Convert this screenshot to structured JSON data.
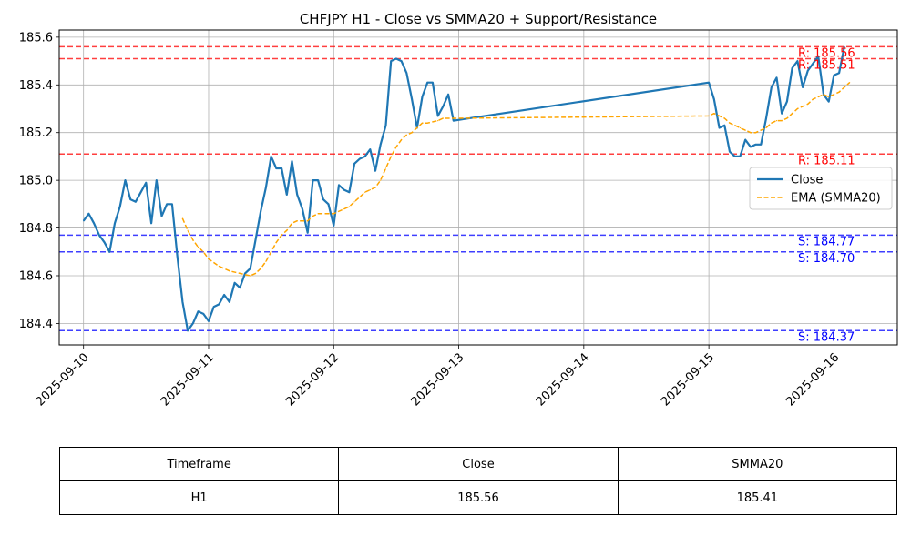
{
  "chart_data": {
    "type": "line",
    "title": "CHFJPY H1 - Close vs SMMA20 + Support/Resistance",
    "xlabel": "",
    "ylabel": "",
    "x_range": [
      "2025-09-09T19:20",
      "2025-09-16T12:10"
    ],
    "ylim": [
      184.31,
      185.63
    ],
    "grid": true,
    "legend_position": "center-right",
    "x_ticks": [
      "2025-09-10",
      "2025-09-11",
      "2025-09-12",
      "2025-09-13",
      "2025-09-14",
      "2025-09-15",
      "2025-09-16"
    ],
    "y_ticks": [
      "184.4",
      "184.6",
      "184.8",
      "185.0",
      "185.2",
      "185.4",
      "185.6"
    ],
    "colors": {
      "close": "#1f77b4",
      "smma": "#ffa500",
      "resistance": "#ff0000",
      "support": "#0000ff",
      "grid": "#b0b0b0"
    },
    "series": [
      {
        "name": "Close",
        "style": "solid",
        "points": [
          [
            "2025-09-10T00:00",
            184.83
          ],
          [
            "2025-09-10T01:00",
            184.86
          ],
          [
            "2025-09-10T02:00",
            184.82
          ],
          [
            "2025-09-10T03:00",
            184.77
          ],
          [
            "2025-09-10T04:00",
            184.74
          ],
          [
            "2025-09-10T05:00",
            184.7
          ],
          [
            "2025-09-10T06:00",
            184.82
          ],
          [
            "2025-09-10T07:00",
            184.89
          ],
          [
            "2025-09-10T08:00",
            185.0
          ],
          [
            "2025-09-10T09:00",
            184.92
          ],
          [
            "2025-09-10T10:00",
            184.91
          ],
          [
            "2025-09-10T11:00",
            184.95
          ],
          [
            "2025-09-10T12:00",
            184.99
          ],
          [
            "2025-09-10T13:00",
            184.82
          ],
          [
            "2025-09-10T14:00",
            185.0
          ],
          [
            "2025-09-10T15:00",
            184.85
          ],
          [
            "2025-09-10T16:00",
            184.9
          ],
          [
            "2025-09-10T17:00",
            184.9
          ],
          [
            "2025-09-10T18:00",
            184.68
          ],
          [
            "2025-09-10T19:00",
            184.49
          ],
          [
            "2025-09-10T20:00",
            184.37
          ],
          [
            "2025-09-10T21:00",
            184.4
          ],
          [
            "2025-09-10T22:00",
            184.45
          ],
          [
            "2025-09-10T23:00",
            184.44
          ],
          [
            "2025-09-11T00:00",
            184.41
          ],
          [
            "2025-09-11T01:00",
            184.47
          ],
          [
            "2025-09-11T02:00",
            184.48
          ],
          [
            "2025-09-11T03:00",
            184.52
          ],
          [
            "2025-09-11T04:00",
            184.49
          ],
          [
            "2025-09-11T05:00",
            184.57
          ],
          [
            "2025-09-11T06:00",
            184.55
          ],
          [
            "2025-09-11T07:00",
            184.61
          ],
          [
            "2025-09-11T08:00",
            184.63
          ],
          [
            "2025-09-11T09:00",
            184.75
          ],
          [
            "2025-09-11T10:00",
            184.87
          ],
          [
            "2025-09-11T11:00",
            184.97
          ],
          [
            "2025-09-11T12:00",
            185.1
          ],
          [
            "2025-09-11T13:00",
            185.05
          ],
          [
            "2025-09-11T14:00",
            185.05
          ],
          [
            "2025-09-11T15:00",
            184.94
          ],
          [
            "2025-09-11T16:00",
            185.08
          ],
          [
            "2025-09-11T17:00",
            184.94
          ],
          [
            "2025-09-11T18:00",
            184.88
          ],
          [
            "2025-09-11T19:00",
            184.78
          ],
          [
            "2025-09-11T20:00",
            185.0
          ],
          [
            "2025-09-11T21:00",
            185.0
          ],
          [
            "2025-09-11T22:00",
            184.92
          ],
          [
            "2025-09-11T23:00",
            184.9
          ],
          [
            "2025-09-12T00:00",
            184.81
          ],
          [
            "2025-09-12T01:00",
            184.98
          ],
          [
            "2025-09-12T02:00",
            184.96
          ],
          [
            "2025-09-12T03:00",
            184.95
          ],
          [
            "2025-09-12T04:00",
            185.07
          ],
          [
            "2025-09-12T05:00",
            185.09
          ],
          [
            "2025-09-12T06:00",
            185.1
          ],
          [
            "2025-09-12T07:00",
            185.13
          ],
          [
            "2025-09-12T08:00",
            185.04
          ],
          [
            "2025-09-12T09:00",
            185.15
          ],
          [
            "2025-09-12T10:00",
            185.23
          ],
          [
            "2025-09-12T11:00",
            185.5
          ],
          [
            "2025-09-12T12:00",
            185.51
          ],
          [
            "2025-09-12T13:00",
            185.5
          ],
          [
            "2025-09-12T14:00",
            185.45
          ],
          [
            "2025-09-12T15:00",
            185.34
          ],
          [
            "2025-09-12T16:00",
            185.22
          ],
          [
            "2025-09-12T17:00",
            185.35
          ],
          [
            "2025-09-12T18:00",
            185.41
          ],
          [
            "2025-09-12T19:00",
            185.41
          ],
          [
            "2025-09-12T20:00",
            185.27
          ],
          [
            "2025-09-12T21:00",
            185.31
          ],
          [
            "2025-09-12T22:00",
            185.36
          ],
          [
            "2025-09-12T23:00",
            185.25
          ],
          [
            "2025-09-15T00:00",
            185.41
          ],
          [
            "2025-09-15T01:00",
            185.34
          ],
          [
            "2025-09-15T02:00",
            185.22
          ],
          [
            "2025-09-15T03:00",
            185.23
          ],
          [
            "2025-09-15T04:00",
            185.12
          ],
          [
            "2025-09-15T05:00",
            185.1
          ],
          [
            "2025-09-15T06:00",
            185.1
          ],
          [
            "2025-09-15T07:00",
            185.17
          ],
          [
            "2025-09-15T08:00",
            185.14
          ],
          [
            "2025-09-15T09:00",
            185.15
          ],
          [
            "2025-09-15T10:00",
            185.15
          ],
          [
            "2025-09-15T11:00",
            185.26
          ],
          [
            "2025-09-15T12:00",
            185.39
          ],
          [
            "2025-09-15T13:00",
            185.43
          ],
          [
            "2025-09-15T14:00",
            185.28
          ],
          [
            "2025-09-15T15:00",
            185.33
          ],
          [
            "2025-09-15T16:00",
            185.47
          ],
          [
            "2025-09-15T17:00",
            185.5
          ],
          [
            "2025-09-15T18:00",
            185.39
          ],
          [
            "2025-09-15T19:00",
            185.46
          ],
          [
            "2025-09-15T20:00",
            185.49
          ],
          [
            "2025-09-15T21:00",
            185.52
          ],
          [
            "2025-09-15T22:00",
            185.36
          ],
          [
            "2025-09-15T23:00",
            185.33
          ],
          [
            "2025-09-16T00:00",
            185.44
          ],
          [
            "2025-09-16T01:00",
            185.45
          ],
          [
            "2025-09-16T02:00",
            185.56
          ]
        ]
      },
      {
        "name": "EMA (SMMA20)",
        "style": "dashed",
        "points": [
          [
            "2025-09-10T19:00",
            184.84
          ],
          [
            "2025-09-10T20:00",
            184.79
          ],
          [
            "2025-09-10T21:00",
            184.75
          ],
          [
            "2025-09-10T22:00",
            184.72
          ],
          [
            "2025-09-10T23:00",
            184.7
          ],
          [
            "2025-09-11T00:00",
            184.67
          ],
          [
            "2025-09-11T02:00",
            184.64
          ],
          [
            "2025-09-11T04:00",
            184.62
          ],
          [
            "2025-09-11T06:00",
            184.61
          ],
          [
            "2025-09-11T08:00",
            184.6
          ],
          [
            "2025-09-11T09:00",
            184.61
          ],
          [
            "2025-09-11T10:00",
            184.63
          ],
          [
            "2025-09-11T11:00",
            184.66
          ],
          [
            "2025-09-11T12:00",
            184.7
          ],
          [
            "2025-09-11T13:00",
            184.74
          ],
          [
            "2025-09-11T14:00",
            184.77
          ],
          [
            "2025-09-11T15:00",
            184.79
          ],
          [
            "2025-09-11T16:00",
            184.82
          ],
          [
            "2025-09-11T17:00",
            184.83
          ],
          [
            "2025-09-11T18:00",
            184.83
          ],
          [
            "2025-09-11T19:00",
            184.83
          ],
          [
            "2025-09-11T20:00",
            184.85
          ],
          [
            "2025-09-11T21:00",
            184.86
          ],
          [
            "2025-09-12T00:00",
            184.86
          ],
          [
            "2025-09-12T02:00",
            184.88
          ],
          [
            "2025-09-12T03:00",
            184.89
          ],
          [
            "2025-09-12T04:00",
            184.91
          ],
          [
            "2025-09-12T05:00",
            184.93
          ],
          [
            "2025-09-12T06:00",
            184.95
          ],
          [
            "2025-09-12T07:00",
            184.96
          ],
          [
            "2025-09-12T08:00",
            184.97
          ],
          [
            "2025-09-12T09:00",
            185.0
          ],
          [
            "2025-09-12T10:00",
            185.05
          ],
          [
            "2025-09-12T11:00",
            185.1
          ],
          [
            "2025-09-12T12:00",
            185.14
          ],
          [
            "2025-09-12T13:00",
            185.17
          ],
          [
            "2025-09-12T14:00",
            185.19
          ],
          [
            "2025-09-12T15:00",
            185.2
          ],
          [
            "2025-09-12T16:00",
            185.22
          ],
          [
            "2025-09-12T17:00",
            185.24
          ],
          [
            "2025-09-12T18:00",
            185.24
          ],
          [
            "2025-09-12T20:00",
            185.25
          ],
          [
            "2025-09-12T21:00",
            185.26
          ],
          [
            "2025-09-12T23:00",
            185.26
          ],
          [
            "2025-09-15T00:00",
            185.27
          ],
          [
            "2025-09-15T01:00",
            185.28
          ],
          [
            "2025-09-15T02:00",
            185.27
          ],
          [
            "2025-09-15T03:00",
            185.26
          ],
          [
            "2025-09-15T04:00",
            185.24
          ],
          [
            "2025-09-15T05:00",
            185.23
          ],
          [
            "2025-09-15T06:00",
            185.22
          ],
          [
            "2025-09-15T07:00",
            185.21
          ],
          [
            "2025-09-15T08:00",
            185.2
          ],
          [
            "2025-09-15T09:00",
            185.2
          ],
          [
            "2025-09-15T10:00",
            185.21
          ],
          [
            "2025-09-15T11:00",
            185.22
          ],
          [
            "2025-09-15T12:00",
            185.24
          ],
          [
            "2025-09-15T13:00",
            185.25
          ],
          [
            "2025-09-15T14:00",
            185.25
          ],
          [
            "2025-09-15T15:00",
            185.26
          ],
          [
            "2025-09-15T16:00",
            185.28
          ],
          [
            "2025-09-15T17:00",
            185.3
          ],
          [
            "2025-09-15T18:00",
            185.31
          ],
          [
            "2025-09-15T19:00",
            185.32
          ],
          [
            "2025-09-15T20:00",
            185.34
          ],
          [
            "2025-09-15T21:00",
            185.35
          ],
          [
            "2025-09-15T22:00",
            185.36
          ],
          [
            "2025-09-15T23:00",
            185.35
          ],
          [
            "2025-09-16T00:00",
            185.36
          ],
          [
            "2025-09-16T01:00",
            185.37
          ],
          [
            "2025-09-16T02:00",
            185.39
          ],
          [
            "2025-09-16T03:00",
            185.41
          ]
        ]
      }
    ],
    "levels": [
      {
        "kind": "resistance",
        "value": 185.56,
        "label": "R: 185.56"
      },
      {
        "kind": "resistance",
        "value": 185.51,
        "label": "R: 185.51"
      },
      {
        "kind": "resistance",
        "value": 185.11,
        "label": "R: 185.11"
      },
      {
        "kind": "support",
        "value": 184.77,
        "label": "S: 184.77"
      },
      {
        "kind": "support",
        "value": 184.7,
        "label": "S: 184.70"
      },
      {
        "kind": "support",
        "value": 184.37,
        "label": "S: 184.37"
      }
    ]
  },
  "table": {
    "headers": [
      "Timeframe",
      "Close",
      "SMMA20"
    ],
    "row": [
      "H1",
      "185.56",
      "185.41"
    ]
  }
}
